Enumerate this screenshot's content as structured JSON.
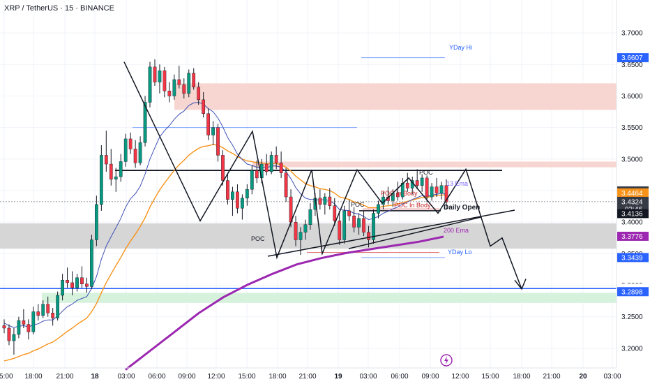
{
  "chart_data": {
    "type": "candlestick",
    "title": "XRP / TetherUS · 15 · BINANCE",
    "ylim": [
      3.17,
      3.73
    ],
    "price_ticks": [
      "3.7000",
      "3.6500",
      "3.6000",
      "3.5500",
      "3.5000",
      "3.4500",
      "3.4000",
      "3.3500",
      "3.3000",
      "3.2500",
      "3.2000"
    ],
    "price_tick_values": [
      3.7,
      3.65,
      3.6,
      3.55,
      3.5,
      3.45,
      3.4,
      3.35,
      3.3,
      3.25,
      3.2
    ],
    "time_ticks": [
      "15:00",
      "18:00",
      "21:00",
      "18",
      "03:00",
      "06:00",
      "09:00",
      "12:00",
      "15:00",
      "18:00",
      "21:00",
      "19",
      "03:00",
      "06:00",
      "09:00",
      "12:00",
      "15:00",
      "18:00",
      "21:00",
      "20",
      "03:00"
    ],
    "price_badges": [
      {
        "text": "3.6607",
        "value": 3.6607,
        "color": "#2962ff"
      },
      {
        "text": "3.4495",
        "value": 3.4495,
        "color": "#363a45"
      },
      {
        "text": "3.4464",
        "value": 3.4464,
        "color": "#f7931a"
      },
      {
        "text": "3.4324",
        "value": 3.4324,
        "color": "#363a45",
        "sub": "02:46"
      },
      {
        "text": "3.4136",
        "value": 3.4136,
        "color": "#131722"
      },
      {
        "text": "3.3776",
        "value": 3.3776,
        "color": "#9c27b0"
      },
      {
        "text": "3.3439",
        "value": 3.3439,
        "color": "#2962ff"
      },
      {
        "text": "3.2948",
        "value": 3.2948,
        "color": "#ffffff",
        "text_color": "#131722"
      },
      {
        "text": "3.2898",
        "value": 3.2898,
        "color": "#2962ff"
      }
    ],
    "annotations": {
      "yday_hi": "YDay Hi",
      "yday_lo": "YDay Lo",
      "daily_open": "Daily Open",
      "ema_13": "13 Ema",
      "ema_200": "200 Ema",
      "poc": "POC",
      "poc_in_body": "POC In Body"
    },
    "zones": [
      {
        "from": 3.578,
        "to": 3.62,
        "color": "#f7d5d0"
      },
      {
        "from": 3.487,
        "to": 3.496,
        "color": "#f7d5d0"
      },
      {
        "from": 3.358,
        "to": 3.398,
        "color": "#d6d6d6"
      },
      {
        "from": 3.272,
        "to": 3.288,
        "color": "#d6f2dc"
      }
    ],
    "levels": {
      "yday_hi": 3.6607,
      "yday_lo": 3.3439,
      "range_top": 3.482,
      "line_3550": 3.55,
      "support_blue": 3.2948
    },
    "candles": [
      [
        3.236,
        3.246,
        3.224,
        3.232
      ],
      [
        3.232,
        3.238,
        3.205,
        3.212
      ],
      [
        3.212,
        3.232,
        3.19,
        3.222
      ],
      [
        3.222,
        3.25,
        3.216,
        3.244
      ],
      [
        3.244,
        3.262,
        3.232,
        3.238
      ],
      [
        3.238,
        3.246,
        3.214,
        3.226
      ],
      [
        3.226,
        3.266,
        3.222,
        3.258
      ],
      [
        3.258,
        3.27,
        3.244,
        3.252
      ],
      [
        3.252,
        3.276,
        3.248,
        3.27
      ],
      [
        3.27,
        3.282,
        3.25,
        3.256
      ],
      [
        3.256,
        3.264,
        3.236,
        3.248
      ],
      [
        3.248,
        3.29,
        3.244,
        3.284
      ],
      [
        3.284,
        3.318,
        3.276,
        3.308
      ],
      [
        3.308,
        3.328,
        3.296,
        3.304
      ],
      [
        3.304,
        3.322,
        3.284,
        3.296
      ],
      [
        3.296,
        3.318,
        3.29,
        3.312
      ],
      [
        3.312,
        3.33,
        3.296,
        3.302
      ],
      [
        3.302,
        3.312,
        3.288,
        3.298
      ],
      [
        3.298,
        3.38,
        3.294,
        3.372
      ],
      [
        3.372,
        3.442,
        3.362,
        3.428
      ],
      [
        3.428,
        3.522,
        3.418,
        3.506
      ],
      [
        3.506,
        3.545,
        3.48,
        3.492
      ],
      [
        3.492,
        3.516,
        3.458,
        3.468
      ],
      [
        3.468,
        3.486,
        3.448,
        3.472
      ],
      [
        3.472,
        3.508,
        3.464,
        3.496
      ],
      [
        3.496,
        3.54,
        3.488,
        3.532
      ],
      [
        3.532,
        3.542,
        3.508,
        3.516
      ],
      [
        3.516,
        3.53,
        3.486,
        3.494
      ],
      [
        3.494,
        3.536,
        3.49,
        3.526
      ],
      [
        3.526,
        3.6,
        3.52,
        3.59
      ],
      [
        3.59,
        3.654,
        3.582,
        3.646
      ],
      [
        3.646,
        3.658,
        3.616,
        3.622
      ],
      [
        3.622,
        3.65,
        3.604,
        3.64
      ],
      [
        3.64,
        3.646,
        3.598,
        3.608
      ],
      [
        3.608,
        3.622,
        3.59,
        3.6
      ],
      [
        3.6,
        3.634,
        3.594,
        3.626
      ],
      [
        3.626,
        3.648,
        3.612,
        3.618
      ],
      [
        3.618,
        3.628,
        3.596,
        3.604
      ],
      [
        3.604,
        3.642,
        3.598,
        3.636
      ],
      [
        3.636,
        3.644,
        3.61,
        3.614
      ],
      [
        3.614,
        3.622,
        3.586,
        3.594
      ],
      [
        3.594,
        3.606,
        3.566,
        3.572
      ],
      [
        3.572,
        3.58,
        3.53,
        3.538
      ],
      [
        3.538,
        3.56,
        3.522,
        3.55
      ],
      [
        3.55,
        3.556,
        3.496,
        3.506
      ],
      [
        3.506,
        3.514,
        3.458,
        3.466
      ],
      [
        3.466,
        3.478,
        3.428,
        3.436
      ],
      [
        3.436,
        3.456,
        3.41,
        3.448
      ],
      [
        3.448,
        3.46,
        3.414,
        3.422
      ],
      [
        3.422,
        3.444,
        3.404,
        3.438
      ],
      [
        3.438,
        3.46,
        3.426,
        3.452
      ],
      [
        3.452,
        3.49,
        3.444,
        3.482
      ],
      [
        3.482,
        3.498,
        3.462,
        3.47
      ],
      [
        3.47,
        3.5,
        3.462,
        3.492
      ],
      [
        3.492,
        3.508,
        3.474,
        3.48
      ],
      [
        3.48,
        3.512,
        3.476,
        3.506
      ],
      [
        3.506,
        3.52,
        3.484,
        3.494
      ],
      [
        3.494,
        3.512,
        3.47,
        3.478
      ],
      [
        3.478,
        3.486,
        3.432,
        3.44
      ],
      [
        3.44,
        3.452,
        3.392,
        3.4
      ],
      [
        3.4,
        3.41,
        3.362,
        3.372
      ],
      [
        3.372,
        3.392,
        3.348,
        3.384
      ],
      [
        3.384,
        3.404,
        3.372,
        3.396
      ],
      [
        3.396,
        3.43,
        3.388,
        3.42
      ],
      [
        3.42,
        3.446,
        3.41,
        3.438
      ],
      [
        3.438,
        3.452,
        3.42,
        3.428
      ],
      [
        3.428,
        3.446,
        3.412,
        3.44
      ],
      [
        3.44,
        3.454,
        3.42,
        3.426
      ],
      [
        3.426,
        3.438,
        3.394,
        3.402
      ],
      [
        3.402,
        3.418,
        3.364,
        3.372
      ],
      [
        3.372,
        3.426,
        3.366,
        3.418
      ],
      [
        3.418,
        3.436,
        3.402,
        3.41
      ],
      [
        3.41,
        3.424,
        3.384,
        3.392
      ],
      [
        3.392,
        3.414,
        3.38,
        3.406
      ],
      [
        3.406,
        3.418,
        3.378,
        3.384
      ],
      [
        3.384,
        3.394,
        3.36,
        3.372
      ],
      [
        3.372,
        3.42,
        3.366,
        3.414
      ],
      [
        3.414,
        3.434,
        3.406,
        3.428
      ],
      [
        3.428,
        3.448,
        3.42,
        3.44
      ],
      [
        3.44,
        3.456,
        3.428,
        3.434
      ],
      [
        3.434,
        3.452,
        3.424,
        3.446
      ],
      [
        3.446,
        3.464,
        3.434,
        3.44
      ],
      [
        3.44,
        3.47,
        3.436,
        3.462
      ],
      [
        3.462,
        3.478,
        3.448,
        3.454
      ],
      [
        3.454,
        3.472,
        3.444,
        3.466
      ],
      [
        3.466,
        3.484,
        3.452,
        3.458
      ],
      [
        3.458,
        3.476,
        3.448,
        3.47
      ],
      [
        3.47,
        3.474,
        3.432,
        3.44
      ],
      [
        3.44,
        3.462,
        3.434,
        3.456
      ],
      [
        3.456,
        3.47,
        3.44,
        3.446
      ],
      [
        3.446,
        3.464,
        3.436,
        3.458
      ],
      [
        3.458,
        3.468,
        3.42,
        3.432
      ]
    ],
    "ema_13": [
      3.24,
      3.236,
      3.233,
      3.235,
      3.236,
      3.234,
      3.237,
      3.239,
      3.243,
      3.245,
      3.245,
      3.251,
      3.259,
      3.266,
      3.27,
      3.276,
      3.279,
      3.282,
      3.295,
      3.314,
      3.341,
      3.362,
      3.377,
      3.391,
      3.406,
      3.424,
      3.437,
      3.445,
      3.457,
      3.476,
      3.5,
      3.518,
      3.535,
      3.545,
      3.553,
      3.563,
      3.571,
      3.576,
      3.585,
      3.589,
      3.59,
      3.587,
      3.58,
      3.575,
      3.565,
      3.551,
      3.534,
      3.522,
      3.508,
      3.499,
      3.492,
      3.49,
      3.487,
      3.487,
      3.486,
      3.489,
      3.489,
      3.487,
      3.48,
      3.469,
      3.455,
      3.445,
      3.438,
      3.436,
      3.436,
      3.435,
      3.436,
      3.434,
      3.429,
      3.42,
      3.419,
      3.418,
      3.414,
      3.413,
      3.409,
      3.404,
      3.406,
      3.409,
      3.414,
      3.417,
      3.421,
      3.424,
      3.429,
      3.432,
      3.436,
      3.439,
      3.442,
      3.441,
      3.443,
      3.444,
      3.446,
      3.444
    ],
    "ema_slow": [
      3.18,
      3.182,
      3.184,
      3.187,
      3.19,
      3.192,
      3.196,
      3.199,
      3.203,
      3.207,
      3.21,
      3.215,
      3.221,
      3.227,
      3.232,
      3.238,
      3.243,
      3.248,
      3.258,
      3.271,
      3.288,
      3.304,
      3.318,
      3.331,
      3.344,
      3.358,
      3.37,
      3.381,
      3.393,
      3.407,
      3.424,
      3.438,
      3.451,
      3.462,
      3.472,
      3.482,
      3.491,
      3.498,
      3.506,
      3.512,
      3.517,
      3.52,
      3.521,
      3.523,
      3.522,
      3.518,
      3.513,
      3.509,
      3.504,
      3.5,
      3.497,
      3.496,
      3.494,
      3.494,
      3.492,
      3.493,
      3.493,
      3.491,
      3.487,
      3.481,
      3.473,
      3.467,
      3.461,
      3.458,
      3.456,
      3.453,
      3.452,
      3.45,
      3.446,
      3.44,
      3.438,
      3.436,
      3.432,
      3.43,
      3.427,
      3.423,
      3.423,
      3.423,
      3.425,
      3.426,
      3.427,
      3.429,
      3.431,
      3.433,
      3.435,
      3.437,
      3.439,
      3.439,
      3.441,
      3.442,
      3.443,
      3.443
    ],
    "ema_200": [
      3.166,
      3.196,
      3.226,
      3.256,
      3.281,
      3.301,
      3.318,
      3.333,
      3.343,
      3.351,
      3.357,
      3.363,
      3.369,
      3.377
    ],
    "pattern_path": [
      [
        3.654,
        0
      ],
      [
        3.402,
        1
      ],
      [
        3.544,
        2
      ],
      [
        3.344,
        3
      ],
      [
        3.483,
        4
      ],
      [
        3.35,
        5
      ],
      [
        3.483,
        6
      ],
      [
        3.43,
        7
      ],
      [
        3.47,
        8
      ],
      [
        3.414,
        9
      ],
      [
        3.484,
        10
      ],
      [
        3.362,
        11
      ],
      [
        3.375,
        12
      ],
      [
        3.294,
        13
      ]
    ]
  }
}
